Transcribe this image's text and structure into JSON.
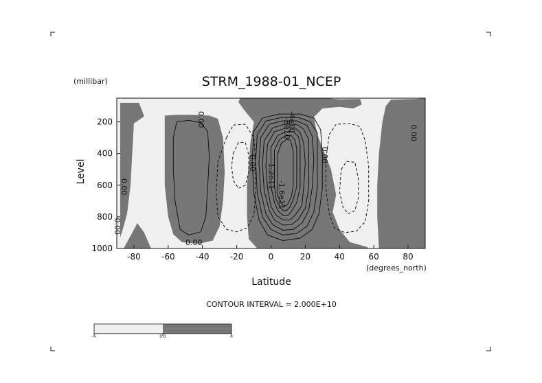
{
  "chart_data": {
    "type": "contour",
    "title": "STRM_1988-01_NCEP",
    "xlabel": "Latitude",
    "ylabel": "Level",
    "x_units": "(degrees_north)",
    "y_units": "(millibar)",
    "xlim": [
      -90,
      90
    ],
    "ylim": [
      1000,
      50
    ],
    "xticks": [
      -80,
      -60,
      -40,
      -20,
      0,
      20,
      40,
      60,
      80
    ],
    "yticks": [
      200,
      400,
      600,
      800,
      1000
    ],
    "contour_interval_text": "CONTOUR INTERVAL = 2.000E+10",
    "shaded_regions": [
      {
        "poly": [
          [
            -88,
            80
          ],
          [
            -77,
            80
          ],
          [
            -74,
            165
          ],
          [
            -80,
            210
          ],
          [
            -82,
            600
          ],
          [
            -84,
            780
          ],
          [
            -86,
            860
          ],
          [
            -88,
            930
          ]
        ]
      },
      {
        "poly": [
          [
            -90,
            1000
          ],
          [
            -86,
            1000
          ],
          [
            -82,
            920
          ],
          [
            -78,
            840
          ],
          [
            -74,
            900
          ],
          [
            -70,
            1000
          ]
        ]
      },
      {
        "poly": [
          [
            -62,
            160
          ],
          [
            -55,
            155
          ],
          [
            -46,
            155
          ],
          [
            -36,
            160
          ],
          [
            -31,
            180
          ],
          [
            -28,
            300
          ],
          [
            -27,
            520
          ],
          [
            -28,
            700
          ],
          [
            -30,
            860
          ],
          [
            -34,
            950
          ],
          [
            -42,
            970
          ],
          [
            -52,
            960
          ],
          [
            -57,
            910
          ],
          [
            -60,
            800
          ],
          [
            -62,
            600
          ],
          [
            -62,
            400
          ]
        ]
      },
      {
        "poly": [
          [
            -18,
            50
          ],
          [
            32,
            50
          ],
          [
            40,
            58
          ],
          [
            52,
            55
          ],
          [
            53,
            90
          ],
          [
            48,
            115
          ],
          [
            40,
            105
          ],
          [
            30,
            115
          ],
          [
            25,
            170
          ],
          [
            27,
            280
          ],
          [
            35,
            500
          ],
          [
            38,
            660
          ],
          [
            36,
            770
          ],
          [
            40,
            880
          ],
          [
            46,
            960
          ],
          [
            56,
            990
          ],
          [
            57,
            1000
          ],
          [
            -8,
            1000
          ],
          [
            -13,
            940
          ],
          [
            -14,
            800
          ],
          [
            -14,
            600
          ],
          [
            -12,
            330
          ],
          [
            -10,
            200
          ],
          [
            -16,
            120
          ],
          [
            -19,
            75
          ]
        ]
      },
      {
        "poly": [
          [
            70,
            60
          ],
          [
            84,
            55
          ],
          [
            90,
            50
          ],
          [
            90,
            1000
          ],
          [
            63,
            1000
          ],
          [
            62,
            800
          ],
          [
            62,
            600
          ],
          [
            63,
            400
          ],
          [
            65,
            200
          ],
          [
            67,
            100
          ]
        ]
      }
    ],
    "solid_contours": [
      {
        "pts": [
          [
            -55,
            200
          ],
          [
            -48,
            190
          ],
          [
            -41,
            205
          ],
          [
            -37,
            260
          ],
          [
            -36,
            420
          ],
          [
            -37,
            620
          ],
          [
            -38,
            800
          ],
          [
            -41,
            895
          ],
          [
            -48,
            915
          ],
          [
            -53,
            880
          ],
          [
            -56,
            700
          ],
          [
            -57,
            500
          ],
          [
            -57,
            300
          ]
        ]
      },
      {
        "pts": [
          [
            -10,
            260
          ],
          [
            -5,
            175
          ],
          [
            5,
            150
          ],
          [
            17,
            150
          ],
          [
            25,
            175
          ],
          [
            29,
            250
          ],
          [
            30,
            420
          ],
          [
            30,
            620
          ],
          [
            28,
            780
          ],
          [
            24,
            880
          ],
          [
            17,
            935
          ],
          [
            7,
            950
          ],
          [
            -2,
            915
          ],
          [
            -7,
            820
          ],
          [
            -10,
            650
          ],
          [
            -11,
            450
          ]
        ]
      },
      {
        "pts": [
          [
            -8,
            280
          ],
          [
            -3,
            195
          ],
          [
            6,
            172
          ],
          [
            16,
            172
          ],
          [
            23,
            200
          ],
          [
            27,
            270
          ],
          [
            27,
            430
          ],
          [
            27,
            620
          ],
          [
            25,
            770
          ],
          [
            21,
            860
          ],
          [
            15,
            905
          ],
          [
            7,
            915
          ],
          [
            0,
            880
          ],
          [
            -5,
            800
          ],
          [
            -8,
            650
          ],
          [
            -9,
            450
          ]
        ]
      },
      {
        "pts": [
          [
            -6,
            300
          ],
          [
            -1,
            215
          ],
          [
            7,
            193
          ],
          [
            15,
            193
          ],
          [
            21,
            222
          ],
          [
            24,
            290
          ],
          [
            25,
            440
          ],
          [
            24,
            620
          ],
          [
            22,
            760
          ],
          [
            18,
            840
          ],
          [
            13,
            880
          ],
          [
            7,
            885
          ],
          [
            1,
            850
          ],
          [
            -3,
            780
          ],
          [
            -6,
            640
          ],
          [
            -7,
            460
          ]
        ]
      },
      {
        "pts": [
          [
            -4,
            320
          ],
          [
            1,
            238
          ],
          [
            8,
            215
          ],
          [
            15,
            215
          ],
          [
            19,
            245
          ],
          [
            22,
            310
          ],
          [
            22,
            450
          ],
          [
            22,
            620
          ],
          [
            20,
            745
          ],
          [
            16,
            815
          ],
          [
            12,
            850
          ],
          [
            7,
            852
          ],
          [
            2,
            820
          ],
          [
            -1,
            760
          ],
          [
            -4,
            630
          ],
          [
            -5,
            470
          ]
        ]
      },
      {
        "pts": [
          [
            -2,
            340
          ],
          [
            2,
            262
          ],
          [
            9,
            238
          ],
          [
            14,
            238
          ],
          [
            17,
            268
          ],
          [
            19,
            330
          ],
          [
            20,
            460
          ],
          [
            19,
            620
          ],
          [
            18,
            730
          ],
          [
            14,
            790
          ],
          [
            11,
            820
          ],
          [
            7,
            820
          ],
          [
            3,
            790
          ],
          [
            0,
            735
          ],
          [
            -2,
            620
          ],
          [
            -3,
            480
          ]
        ]
      },
      {
        "pts": [
          [
            0,
            360
          ],
          [
            4,
            285
          ],
          [
            9,
            262
          ],
          [
            13,
            262
          ],
          [
            16,
            292
          ],
          [
            17,
            350
          ],
          [
            17,
            470
          ],
          [
            17,
            615
          ],
          [
            15,
            710
          ],
          [
            12,
            765
          ],
          [
            10,
            790
          ],
          [
            7,
            790
          ],
          [
            4,
            760
          ],
          [
            2,
            710
          ],
          [
            0,
            610
          ],
          [
            0,
            490
          ]
        ]
      },
      {
        "pts": [
          [
            2,
            380
          ],
          [
            5,
            310
          ],
          [
            9,
            287
          ],
          [
            12,
            287
          ],
          [
            14,
            315
          ],
          [
            15,
            370
          ],
          [
            15,
            480
          ],
          [
            15,
            610
          ],
          [
            13,
            690
          ],
          [
            11,
            740
          ],
          [
            9,
            760
          ],
          [
            7,
            760
          ],
          [
            5,
            735
          ],
          [
            3,
            690
          ],
          [
            2,
            600
          ],
          [
            2,
            500
          ]
        ]
      },
      {
        "pts": [
          [
            4,
            400
          ],
          [
            6,
            335
          ],
          [
            9,
            312
          ],
          [
            11,
            312
          ],
          [
            12,
            340
          ],
          [
            13,
            390
          ],
          [
            13,
            490
          ],
          [
            13,
            600
          ],
          [
            12,
            670
          ],
          [
            10,
            715
          ],
          [
            9,
            730
          ],
          [
            7,
            730
          ],
          [
            6,
            710
          ],
          [
            4,
            670
          ],
          [
            4,
            590
          ],
          [
            4,
            510
          ]
        ]
      }
    ],
    "dashed_contours": [
      {
        "pts": [
          [
            -26,
            300
          ],
          [
            -22,
            220
          ],
          [
            -15,
            215
          ],
          [
            -10,
            300
          ],
          [
            -9,
            450
          ],
          [
            -9,
            650
          ],
          [
            -10,
            790
          ],
          [
            -14,
            870
          ],
          [
            -20,
            895
          ],
          [
            -26,
            880
          ],
          [
            -31,
            800
          ],
          [
            -32,
            640
          ],
          [
            -31,
            450
          ]
        ]
      },
      {
        "pts": [
          [
            -22,
            400
          ],
          [
            -19,
            330
          ],
          [
            -15,
            330
          ],
          [
            -13,
            410
          ],
          [
            -13,
            520
          ],
          [
            -15,
            600
          ],
          [
            -19,
            620
          ],
          [
            -22,
            570
          ],
          [
            -23,
            480
          ]
        ]
      },
      {
        "pts": [
          [
            34,
            280
          ],
          [
            38,
            215
          ],
          [
            46,
            210
          ],
          [
            52,
            230
          ],
          [
            55,
            320
          ],
          [
            57,
            480
          ],
          [
            57,
            700
          ],
          [
            55,
            830
          ],
          [
            50,
            890
          ],
          [
            43,
            900
          ],
          [
            37,
            870
          ],
          [
            34,
            780
          ],
          [
            32,
            620
          ],
          [
            32,
            440
          ]
        ]
      },
      {
        "pts": [
          [
            41,
            500
          ],
          [
            44,
            450
          ],
          [
            49,
            455
          ],
          [
            51,
            560
          ],
          [
            51,
            680
          ],
          [
            49,
            760
          ],
          [
            45,
            780
          ],
          [
            42,
            740
          ],
          [
            40,
            640
          ]
        ]
      }
    ],
    "contour_labels": [
      {
        "text": "0.00",
        "x": -41,
        "y": 185,
        "rot": 90
      },
      {
        "text": "0.00",
        "x": -86,
        "y": 610,
        "rot": 90
      },
      {
        "text": "0.00",
        "x": -90,
        "y": 860,
        "rot": 90
      },
      {
        "text": "0.00",
        "x": -45,
        "y": 965,
        "rot": 0
      },
      {
        "text": "0.00",
        "x": -11,
        "y": 460,
        "rot": 90
      },
      {
        "text": "0.00",
        "x": 31,
        "y": 410,
        "rot": 90
      },
      {
        "text": "0.00",
        "x": 83,
        "y": 270,
        "rot": 90
      },
      {
        "text": "-4e10",
        "x": 12,
        "y": 200,
        "rot": 90
      },
      {
        "text": "-8e10",
        "x": 9,
        "y": 240,
        "rot": 90
      },
      {
        "text": "-1.2e11",
        "x": 0,
        "y": 535,
        "rot": 90
      },
      {
        "text": "-1.6e11",
        "x": 6,
        "y": 660,
        "rot": 90
      }
    ],
    "colorbar": {
      "labels": [
        "-∞",
        "0.0",
        "∞"
      ],
      "colors": [
        "#f0f0f0",
        "#777777"
      ]
    },
    "colors": {
      "light_fill": "#f0f0f0",
      "dark_fill": "#777777",
      "line": "#111111"
    }
  }
}
